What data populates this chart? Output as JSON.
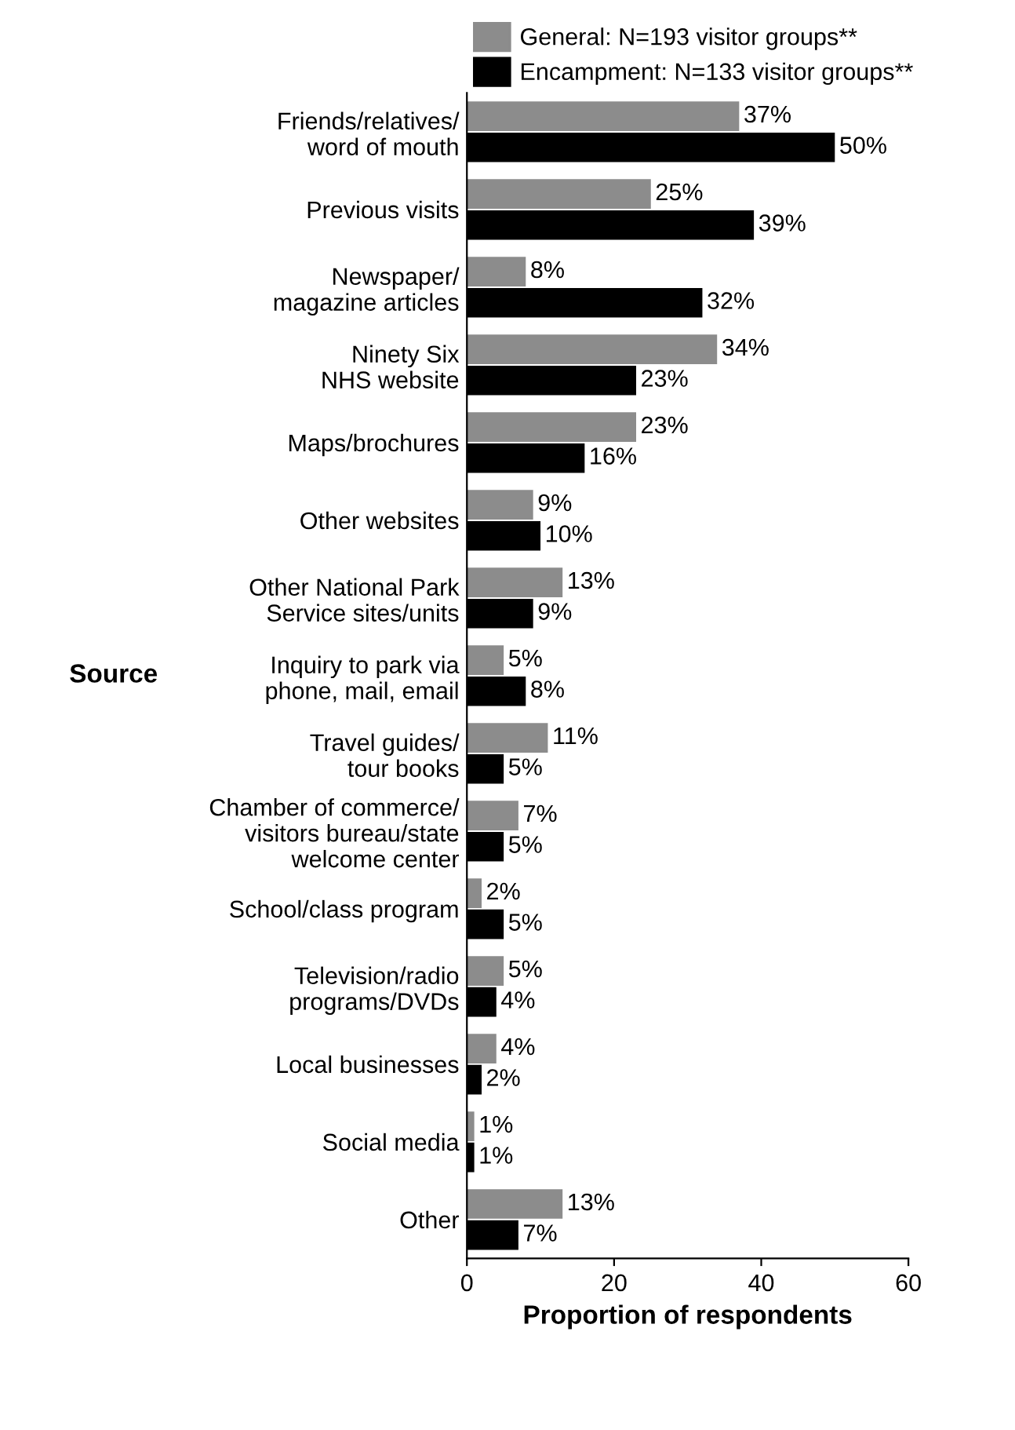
{
  "chart_data": {
    "type": "bar",
    "orientation": "horizontal",
    "xlabel": "Proportion of respondents",
    "ylabel": "Source",
    "categories": [
      "Friends/relatives/\nword of mouth",
      "Previous visits",
      "Newspaper/\nmagazine articles",
      "Ninety Six\nNHS website",
      "Maps/brochures",
      "Other websites",
      "Other National Park\nService sites/units",
      "Inquiry to park via\nphone, mail, email",
      "Travel guides/\ntour books",
      "Chamber of commerce/\nvisitors bureau/state\nwelcome center",
      "School/class program",
      "Television/radio\nprograms/DVDs",
      "Local businesses",
      "Social media",
      "Other"
    ],
    "series": [
      {
        "name": "General: N=193 visitor groups**",
        "color": "#8c8c8c",
        "values": [
          37,
          25,
          8,
          34,
          23,
          9,
          13,
          5,
          11,
          7,
          2,
          5,
          4,
          1,
          13
        ],
        "value_labels": [
          "37%",
          "25%",
          "8%",
          "34%",
          "23%",
          "9%",
          "13%",
          "5%",
          "11%",
          "7%",
          "2%",
          "5%",
          "4%",
          "1%",
          "13%"
        ]
      },
      {
        "name": "Encampment: N=133 visitor groups**",
        "color": "#000000",
        "values": [
          50,
          39,
          32,
          23,
          16,
          10,
          9,
          8,
          5,
          5,
          5,
          4,
          2,
          1,
          7
        ],
        "value_labels": [
          "50%",
          "39%",
          "32%",
          "23%",
          "16%",
          "10%",
          "9%",
          "8%",
          "5%",
          "5%",
          "5%",
          "4%",
          "2%",
          "1%",
          "7%"
        ]
      }
    ],
    "xlim": [
      0,
      60
    ],
    "xticks": [
      0,
      20,
      40,
      60
    ],
    "grid": false,
    "legend": "top"
  }
}
